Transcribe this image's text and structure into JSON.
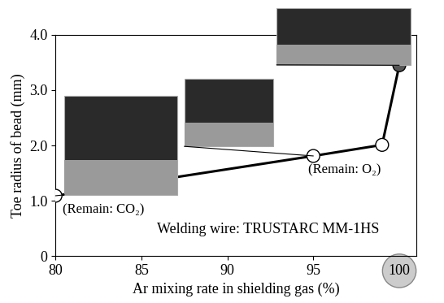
{
  "chart_data": {
    "type": "line",
    "x_label": "Ar mixing rate in shielding gas (%)",
    "y_label": "Toe radius of bead (mm)",
    "x": [
      80,
      95,
      99,
      100
    ],
    "series": [
      {
        "name": "TRUSTARC MM-1HS",
        "color": "#000000",
        "marker": "o",
        "line_style": "solid",
        "colors": [
          "#ffffff",
          "#ffffff",
          "#ffffff",
          "#555555"
        ],
        "values": [
          1.09,
          1.81,
          2.01,
          3.45
        ]
      }
    ],
    "annotations": [
      "(Remain: CO₂)",
      "(Remain: O₂)",
      "Welding wire: TRUSTARC MM-1HS"
    ],
    "xlim": [
      80,
      101
    ],
    "xticks": [
      80,
      85,
      90,
      95,
      100
    ],
    "ylim": [
      0,
      4
    ],
    "yticks": [
      0,
      {
        "value": 1,
        "label": "1.0"
      },
      {
        "value": 2,
        "label": "2.0"
      },
      {
        "value": 3,
        "label": "3.0"
      },
      {
        "value": 4,
        "label": "4.0"
      }
    ],
    "grid": false
  }
}
